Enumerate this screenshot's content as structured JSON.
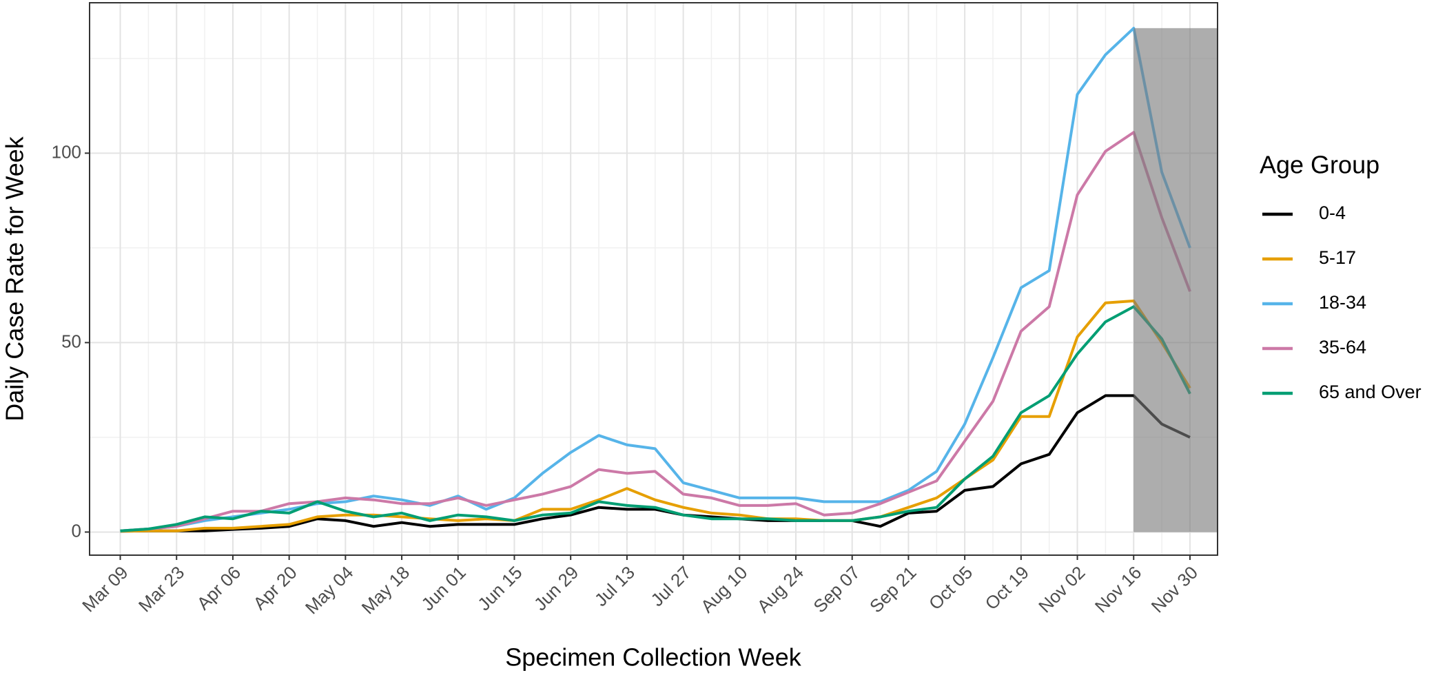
{
  "chart_data": {
    "type": "line",
    "x_label": "Specimen Collection Week",
    "y_label": "Daily Case Rate for Week",
    "legend_title": "Age Group",
    "legend": "right",
    "grid": true,
    "categories": [
      "Mar 09",
      null,
      "Mar 23",
      null,
      "Apr 06",
      null,
      "Apr 20",
      null,
      "May 04",
      null,
      "May 18",
      null,
      "Jun 01",
      null,
      "Jun 15",
      null,
      "Jun 29",
      null,
      "Jul 13",
      null,
      "Jul 27",
      null,
      "Aug 10",
      null,
      "Aug 24",
      null,
      "Sep 07",
      null,
      "Sep 21",
      null,
      "Oct 05",
      null,
      "Oct 19",
      null,
      "Nov 02",
      null,
      "Nov 16",
      null,
      "Nov 30"
    ],
    "ylim": [
      -6.1,
      139.7
    ],
    "yticks": [
      0,
      50,
      100
    ],
    "minor_yticks": [
      25,
      75,
      125
    ],
    "highlight": {
      "start": 36,
      "top": 133
    },
    "series": [
      {
        "name": "0-4",
        "color": "#000000",
        "values": [
          0.2,
          0.3,
          0.3,
          0.3,
          0.7,
          1,
          1.5,
          3.5,
          3,
          1.5,
          2.5,
          1.5,
          2,
          2,
          2,
          3.5,
          4.5,
          6.5,
          6,
          6,
          4.5,
          4,
          3.5,
          3,
          3,
          3,
          3,
          1.5,
          5,
          5.5,
          11,
          12,
          18,
          20.5,
          31.5,
          36,
          36,
          28.5,
          25
        ]
      },
      {
        "name": "5-17",
        "color": "#E69F00",
        "values": [
          0.2,
          0.3,
          0.3,
          1,
          1,
          1.5,
          2,
          4,
          4.5,
          4.5,
          4,
          3.5,
          3,
          3.5,
          3,
          6,
          6,
          8.5,
          11.5,
          8.5,
          6.5,
          5,
          4.5,
          3.5,
          3.5,
          3,
          3,
          4,
          6.5,
          9,
          14,
          19,
          30.5,
          30.5,
          51.5,
          60.5,
          61,
          50,
          38
        ]
      },
      {
        "name": "18-34",
        "color": "#56B4E9",
        "values": [
          0.3,
          0.8,
          1.5,
          3,
          4,
          5,
          6,
          7.5,
          8,
          9.5,
          8.5,
          7,
          9.5,
          6,
          9,
          15.5,
          21,
          25.5,
          23,
          22,
          13,
          11,
          9,
          9,
          9,
          8,
          8,
          8,
          11,
          16,
          28.5,
          46,
          64.5,
          69,
          115.5,
          126,
          133,
          95,
          75
        ]
      },
      {
        "name": "35-64",
        "color": "#CC79A7",
        "values": [
          0.3,
          0.8,
          1.5,
          3.5,
          5.5,
          5.5,
          7.5,
          8,
          9,
          8.5,
          7.5,
          7.5,
          9,
          7,
          8.5,
          10,
          12,
          16.5,
          15.5,
          16,
          10,
          9,
          7,
          7,
          7.5,
          4.5,
          5,
          7.5,
          10.5,
          13.5,
          24,
          34.5,
          53,
          59.5,
          89,
          100.5,
          105.5,
          83,
          63.5
        ]
      },
      {
        "name": "65 and Over",
        "color": "#009E73",
        "values": [
          0.3,
          0.8,
          2,
          4,
          3.5,
          5.5,
          5,
          8,
          5.5,
          4,
          5,
          3,
          4.5,
          4,
          3,
          4.5,
          5,
          8,
          7,
          6.5,
          4.5,
          3.5,
          3.5,
          3.5,
          3,
          3,
          3,
          4,
          5.5,
          6.5,
          14,
          20,
          31.5,
          36,
          47,
          55.5,
          59.5,
          51,
          36.5
        ]
      }
    ]
  }
}
